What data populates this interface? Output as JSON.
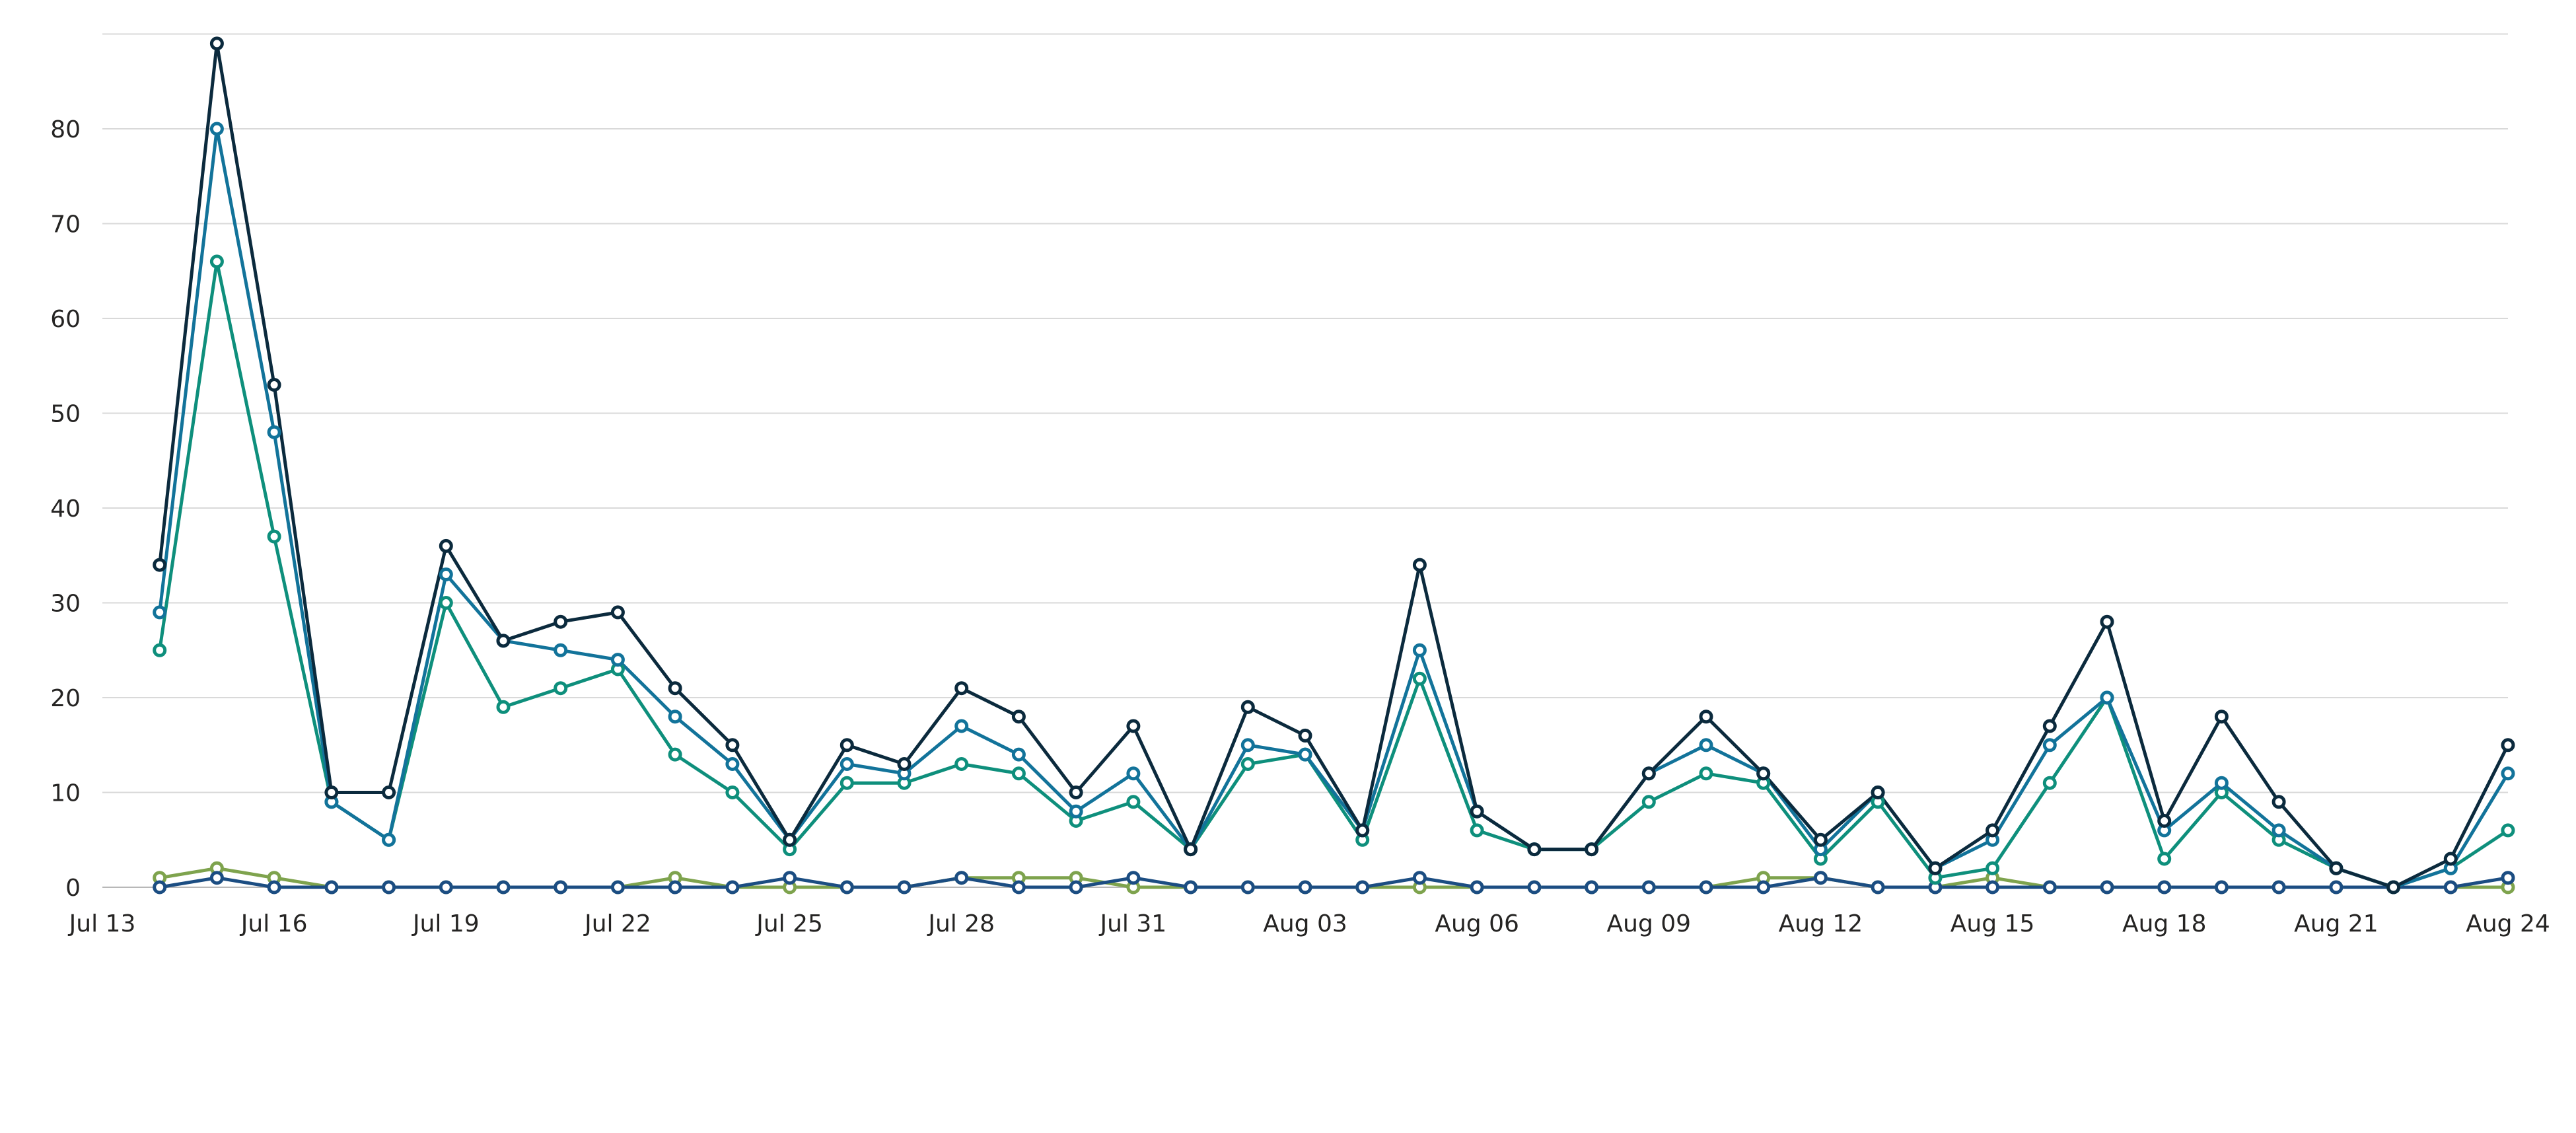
{
  "chart_data": {
    "type": "line",
    "title": "",
    "xlabel": "",
    "ylabel": "",
    "x_start": "2023-07-14",
    "x_tick_labels": [
      "Jul 13",
      "Jul 16",
      "Jul 19",
      "Jul 22",
      "Jul 25",
      "Jul 28",
      "Jul 31",
      "Aug 03",
      "Aug 06",
      "Aug 09",
      "Aug 12",
      "Aug 15",
      "Aug 18",
      "Aug 21",
      "Aug 24"
    ],
    "y_ticks": [
      0,
      10,
      20,
      30,
      40,
      50,
      60,
      70,
      80
    ],
    "y_lim": [
      0,
      90
    ],
    "grid": true,
    "legend": "none",
    "x": [
      "Jul 14",
      "Jul 15",
      "Jul 16",
      "Jul 17",
      "Jul 18",
      "Jul 19",
      "Jul 20",
      "Jul 21",
      "Jul 22",
      "Jul 23",
      "Jul 24",
      "Jul 25",
      "Jul 26",
      "Jul 27",
      "Jul 28",
      "Jul 29",
      "Jul 30",
      "Jul 31",
      "Aug 01",
      "Aug 02",
      "Aug 03",
      "Aug 04",
      "Aug 05",
      "Aug 06",
      "Aug 07",
      "Aug 08",
      "Aug 09",
      "Aug 10",
      "Aug 11",
      "Aug 12",
      "Aug 13",
      "Aug 14",
      "Aug 15",
      "Aug 16",
      "Aug 17",
      "Aug 18",
      "Aug 19",
      "Aug 20",
      "Aug 21",
      "Aug 22",
      "Aug 23",
      "Aug 24"
    ],
    "series": [
      {
        "color": "#0b2a3d",
        "values": [
          34,
          89,
          53,
          10,
          10,
          36,
          26,
          28,
          29,
          21,
          15,
          5,
          15,
          13,
          21,
          18,
          10,
          17,
          4,
          19,
          16,
          6,
          34,
          8,
          4,
          4,
          12,
          18,
          12,
          5,
          10,
          2,
          6,
          17,
          28,
          7,
          18,
          9,
          2,
          0,
          3,
          15
        ]
      },
      {
        "color": "#12739a",
        "values": [
          29,
          80,
          48,
          9,
          5,
          33,
          26,
          25,
          24,
          18,
          13,
          5,
          13,
          12,
          17,
          14,
          8,
          12,
          4,
          15,
          14,
          6,
          25,
          8,
          4,
          4,
          12,
          15,
          12,
          4,
          10,
          2,
          5,
          15,
          20,
          6,
          11,
          6,
          2,
          0,
          2,
          12
        ]
      },
      {
        "color": "#0e8f7c",
        "values": [
          25,
          66,
          37,
          9,
          5,
          30,
          19,
          21,
          23,
          14,
          10,
          4,
          11,
          11,
          13,
          12,
          7,
          9,
          4,
          13,
          14,
          5,
          22,
          6,
          4,
          4,
          9,
          12,
          11,
          3,
          9,
          1,
          2,
          11,
          20,
          3,
          10,
          5,
          2,
          0,
          2,
          6
        ]
      },
      {
        "color": "#1b4d82",
        "values": [
          0,
          1,
          0,
          0,
          0,
          0,
          0,
          0,
          0,
          0,
          0,
          1,
          0,
          0,
          1,
          0,
          0,
          1,
          0,
          0,
          0,
          0,
          1,
          0,
          0,
          0,
          0,
          0,
          0,
          1,
          0,
          0,
          0,
          0,
          0,
          0,
          0,
          0,
          0,
          0,
          0,
          1
        ]
      },
      {
        "color": "#7ea34d",
        "values": [
          1,
          2,
          1,
          0,
          0,
          0,
          0,
          0,
          0,
          1,
          0,
          0,
          0,
          0,
          1,
          1,
          1,
          0,
          0,
          0,
          0,
          0,
          0,
          0,
          0,
          0,
          0,
          0,
          1,
          1,
          0,
          0,
          1,
          0,
          0,
          0,
          0,
          0,
          0,
          0,
          0,
          0
        ]
      }
    ]
  }
}
